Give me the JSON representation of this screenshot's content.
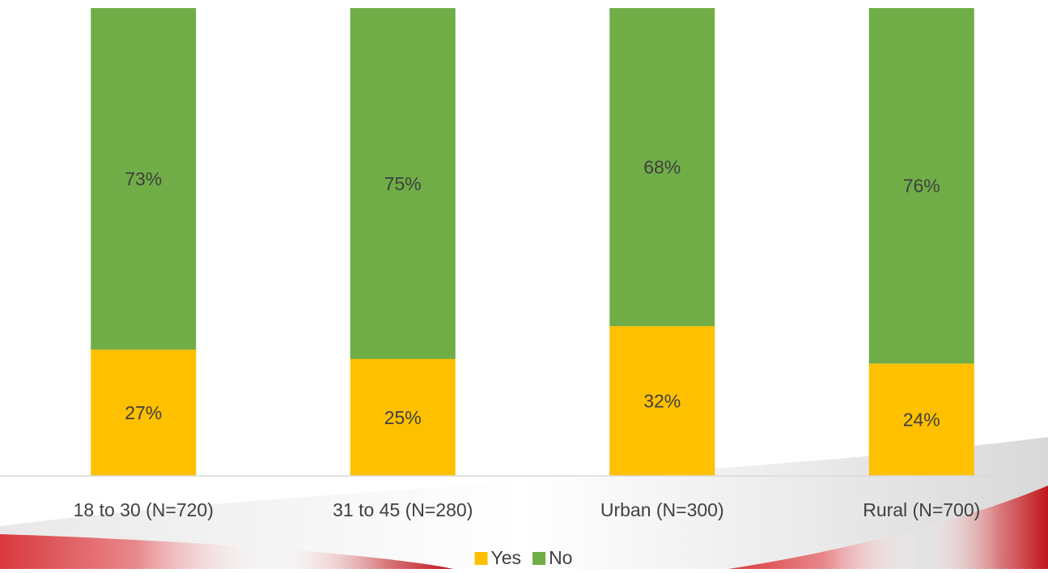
{
  "chart_data": {
    "type": "stacked_bar",
    "categories": [
      "18 to 30 (N=720)",
      "31 to 45 (N=280)",
      "Urban (N=300)",
      "Rural (N=700)"
    ],
    "series": [
      {
        "name": "Yes",
        "color": "#ffc000",
        "values": [
          27,
          25,
          32,
          24
        ],
        "value_labels": [
          "27%",
          "25%",
          "32%",
          "24%"
        ]
      },
      {
        "name": "No",
        "color": "#70ad47",
        "values": [
          73,
          75,
          68,
          76
        ],
        "value_labels": [
          "73%",
          "75%",
          "68%",
          "76%"
        ]
      }
    ],
    "ylim": [
      0,
      100
    ],
    "legend": "bottom"
  }
}
